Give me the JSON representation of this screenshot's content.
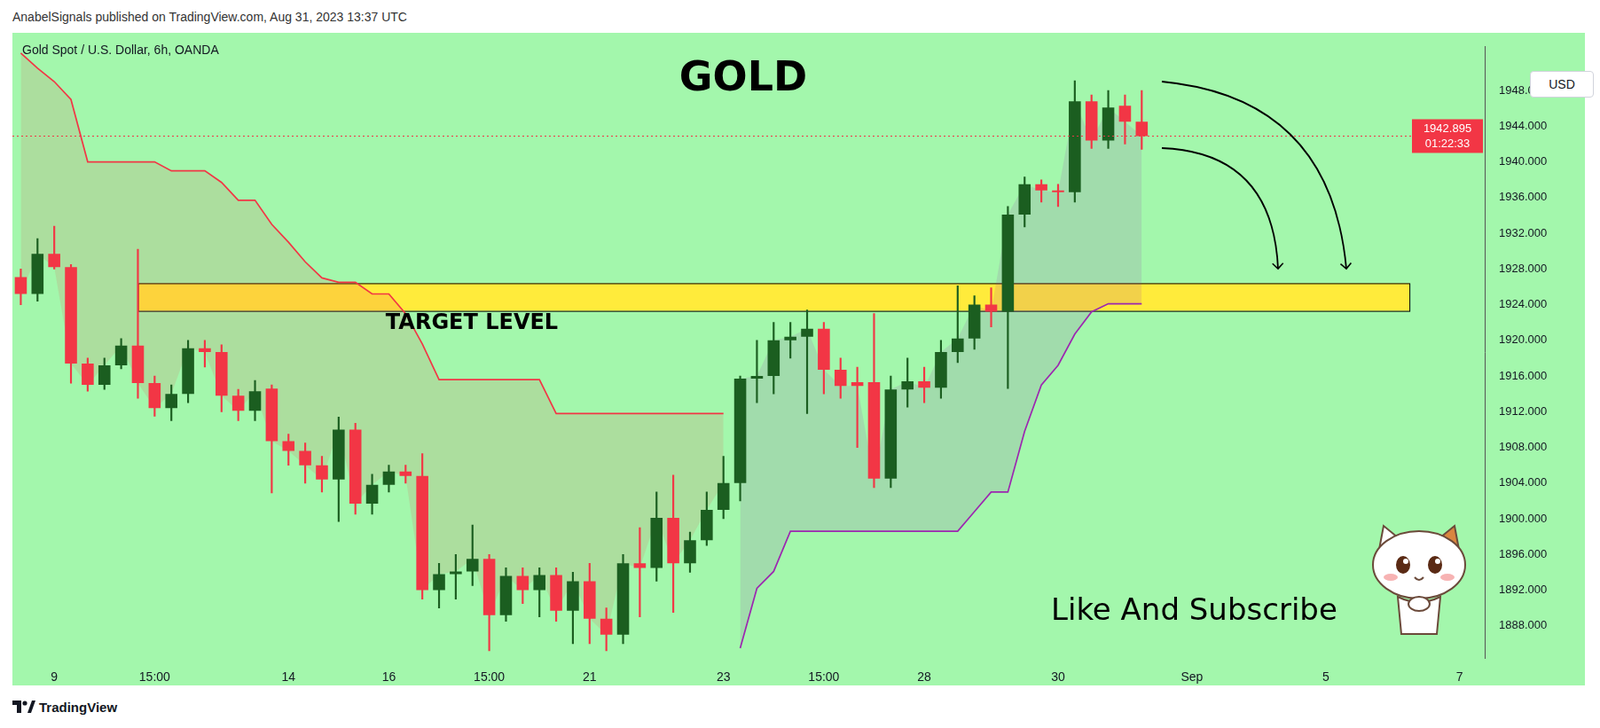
{
  "header": "AnabelSignals published on TradingView.com, Aug 31, 2023 13:37 UTC",
  "footer": "TradingView",
  "chart_data": {
    "type": "candlestick",
    "title": "GOLD",
    "subtitle": "Gold Spot / U.S. Dollar, 6h, OANDA",
    "currency": "USD",
    "call_to_action": "Like And Subscribe",
    "categories": [
      null,
      null,
      "9",
      null,
      null,
      null,
      null,
      null,
      "15:00",
      null,
      null,
      null,
      null,
      null,
      null,
      null,
      "14",
      null,
      null,
      null,
      null,
      null,
      "16",
      null,
      null,
      null,
      null,
      null,
      "15:00",
      null,
      null,
      null,
      null,
      null,
      "21",
      null,
      null,
      null,
      null,
      null,
      null,
      null,
      "23",
      null,
      null,
      null,
      null,
      null,
      "15:00",
      null,
      null,
      null,
      null,
      null,
      "28",
      null,
      null,
      null,
      null,
      null,
      null,
      null,
      "30",
      null,
      null,
      null,
      null,
      null,
      null,
      null,
      "Sep",
      null,
      null,
      null,
      null,
      null,
      null,
      null,
      "5",
      null,
      null,
      null,
      null,
      null,
      null,
      null,
      "7",
      null
    ],
    "open": [
      1927.1,
      1925.2,
      1929.7,
      1928.2,
      1917.4,
      1915.0,
      1917.2,
      1919.4,
      1915.2,
      1912.4,
      1914.0,
      1919.1,
      1918.7,
      1913.8,
      1912.1,
      1914.6,
      1908.7,
      1907.6,
      1906.0,
      1904.4,
      1910.0,
      1901.7,
      1903.8,
      1905.3,
      1904.8,
      1892.0,
      1893.8,
      1894.1,
      1895.5,
      1889.2,
      1893.6,
      1892.0,
      1893.7,
      1889.7,
      1893.0,
      1888.8,
      1887.0,
      1895.0,
      1894.5,
      1900.1,
      1895.0,
      1897.6,
      1901.0,
      1904.0,
      1915.7,
      1916.0,
      1920.0,
      1920.4,
      1921.3,
      1916.7,
      1915.3,
      1915.3,
      1904.5,
      1914.5,
      1915.4,
      1914.7,
      1918.7,
      1920.2,
      1924.0,
      1923.2,
      1934.1,
      1937.5,
      1936.8,
      1936.6,
      1946.8,
      1942.4,
      1946.3,
      1944.5,
      null,
      null,
      null,
      null,
      null,
      null,
      null,
      null,
      null,
      null,
      null,
      null,
      null,
      null,
      null,
      null,
      null,
      null,
      null,
      null
    ],
    "high": [
      1928.0,
      1931.4,
      1932.8,
      1928.5,
      1918.0,
      1918.0,
      1920.2,
      1930.2,
      1916.0,
      1915.0,
      1920.0,
      1920.0,
      1919.5,
      1914.5,
      1915.5,
      1915.0,
      1909.5,
      1908.5,
      1907.0,
      1911.4,
      1910.7,
      1905.0,
      1906.0,
      1906.0,
      1907.3,
      1895.0,
      1896.0,
      1899.3,
      1896.0,
      1894.5,
      1894.5,
      1894.5,
      1894.5,
      1894.0,
      1895.0,
      1890.0,
      1896.0,
      1899.0,
      1903.0,
      1904.9,
      1898.5,
      1903.0,
      1907.0,
      1916.0,
      1920.0,
      1922.0,
      1922.0,
      1923.4,
      1922.0,
      1918.0,
      1917.0,
      1923.0,
      1916.0,
      1918.0,
      1917.0,
      1920.0,
      1926.1,
      1925.0,
      1925.9,
      1935.0,
      1938.3,
      1938.0,
      1937.5,
      1949.1,
      1947.5,
      1948.0,
      1947.5,
      1948.0,
      null,
      null,
      null,
      null,
      null,
      null,
      null,
      null,
      null,
      null,
      null,
      null,
      null,
      null,
      null,
      null,
      null,
      null,
      null,
      null
    ],
    "low": [
      1924.0,
      1924.4,
      1928.0,
      1915.2,
      1914.3,
      1914.5,
      1916.8,
      1913.5,
      1911.5,
      1911.0,
      1913.0,
      1917.0,
      1912.0,
      1911.0,
      1911.0,
      1902.9,
      1906.0,
      1904.0,
      1903.0,
      1899.7,
      1900.5,
      1900.5,
      1903.0,
      1904.0,
      1891.0,
      1890.0,
      1891.0,
      1892.5,
      1885.2,
      1888.5,
      1890.5,
      1889.0,
      1888.5,
      1886.0,
      1886.0,
      1885.2,
      1886.0,
      1889.0,
      1893.0,
      1889.5,
      1894.0,
      1897.0,
      1900.0,
      1902.0,
      1913.0,
      1914.0,
      1918.0,
      1911.8,
      1914.0,
      1913.5,
      1908.0,
      1903.5,
      1903.5,
      1912.5,
      1913.0,
      1913.5,
      1917.5,
      1919.0,
      1921.5,
      1914.6,
      1932.7,
      1935.5,
      1935.0,
      1935.5,
      1941.5,
      1941.5,
      1942.0,
      1941.4,
      null,
      null,
      null,
      null,
      null,
      null,
      null,
      null,
      null,
      null,
      null,
      null,
      null,
      null,
      null,
      null,
      null,
      null,
      null,
      null
    ],
    "close": [
      1925.2,
      1929.7,
      1928.2,
      1917.4,
      1915.0,
      1917.2,
      1919.4,
      1915.2,
      1912.4,
      1914.0,
      1919.1,
      1918.7,
      1913.8,
      1912.1,
      1914.3,
      1908.7,
      1907.6,
      1906.0,
      1904.4,
      1910.0,
      1901.7,
      1903.8,
      1905.3,
      1904.8,
      1892.0,
      1893.8,
      1894.1,
      1895.5,
      1889.2,
      1893.6,
      1892.0,
      1893.7,
      1889.7,
      1893.0,
      1888.8,
      1887.0,
      1895.0,
      1894.5,
      1900.1,
      1895.0,
      1897.6,
      1901.0,
      1904.0,
      1915.7,
      1916.0,
      1920.0,
      1920.4,
      1921.3,
      1916.7,
      1914.9,
      1914.9,
      1904.5,
      1914.5,
      1915.4,
      1914.7,
      1918.7,
      1920.2,
      1924.0,
      1923.2,
      1934.1,
      1937.5,
      1936.8,
      1936.6,
      1946.8,
      1942.4,
      1946.1,
      1944.5,
      1942.895,
      null,
      null,
      null,
      null,
      null,
      null,
      null,
      null,
      null,
      null,
      null,
      null,
      null,
      null,
      null,
      null,
      null,
      null,
      null,
      null
    ],
    "series": [
      {
        "type": "line",
        "color": "#f23645",
        "values": [
          1952.2,
          1950.5,
          1949.0,
          1947.0,
          1940.0,
          1940.0,
          1940.0,
          1940.0,
          1940.0,
          1939.0,
          1939.0,
          1939.0,
          1937.7,
          1935.7,
          1935.7,
          1933.0,
          1931.0,
          1928.8,
          1927.0,
          1926.5,
          1926.5,
          1925.2,
          1925.2,
          1923.0,
          1919.6,
          1915.6,
          1915.6,
          1915.6,
          1915.6,
          1915.6,
          1915.6,
          1915.6,
          1911.8,
          1911.8,
          1911.8,
          1911.8,
          1911.8,
          1911.8,
          1911.8,
          1911.8,
          1911.8,
          1911.8,
          1911.8,
          null,
          null,
          null,
          null,
          null,
          null,
          null,
          null,
          null,
          null,
          null,
          null,
          null,
          null,
          null,
          null,
          null,
          null,
          null,
          null,
          null,
          null,
          null,
          null,
          null,
          null,
          null,
          null,
          null,
          null,
          null,
          null,
          null,
          null,
          null,
          null,
          null,
          null,
          null,
          null,
          null,
          null,
          null,
          null,
          null
        ]
      },
      {
        "type": "line",
        "color": "#9c27b0",
        "values": [
          null,
          null,
          null,
          null,
          null,
          null,
          null,
          null,
          null,
          null,
          null,
          null,
          null,
          null,
          null,
          null,
          null,
          null,
          null,
          null,
          null,
          null,
          null,
          null,
          null,
          null,
          null,
          null,
          null,
          null,
          null,
          null,
          null,
          null,
          null,
          null,
          null,
          null,
          null,
          null,
          null,
          null,
          null,
          1885.5,
          1892.2,
          1894.1,
          1898.6,
          1898.6,
          1898.6,
          1898.6,
          1898.6,
          1898.6,
          1898.6,
          1898.6,
          1898.6,
          1898.6,
          1898.6,
          1900.8,
          1903.0,
          1903.0,
          1909.8,
          1915.0,
          1917.2,
          1920.7,
          1923.2,
          1924.1,
          1924.1,
          1924.1,
          null,
          null,
          null,
          null,
          null,
          null,
          null,
          null,
          null,
          null,
          null,
          null,
          null,
          null,
          null,
          null,
          null,
          null,
          null,
          null
        ]
      }
    ],
    "ylim": [
      1884.4,
      1952.9
    ],
    "yticks": [
      {
        "value": 1888,
        "label": "1888.000"
      },
      {
        "value": 1892,
        "label": "1892.000"
      },
      {
        "value": 1896,
        "label": "1896.000"
      },
      {
        "value": 1900,
        "label": "1900.000"
      },
      {
        "value": 1904,
        "label": "1904.000"
      },
      {
        "value": 1908,
        "label": "1908.000"
      },
      {
        "value": 1912,
        "label": "1912.000"
      },
      {
        "value": 1916,
        "label": "1916.000"
      },
      {
        "value": 1920,
        "label": "1920.000"
      },
      {
        "value": 1924,
        "label": "1924.000"
      },
      {
        "value": 1928,
        "label": "1928.000"
      },
      {
        "value": 1932,
        "label": "1932.000"
      },
      {
        "value": 1936,
        "label": "1936.000"
      },
      {
        "value": 1940,
        "label": "1940.000"
      },
      {
        "value": 1944,
        "label": "1944.000"
      },
      {
        "value": 1948,
        "label": "1948.000"
      }
    ],
    "grid": false,
    "target_zone": {
      "label": "TARGET LEVEL",
      "ylim": [
        1923.3,
        1926.4
      ],
      "x": [
        7,
        83
      ]
    },
    "last_price": {
      "value": 1942.895,
      "countdown": "01:22:33"
    }
  }
}
